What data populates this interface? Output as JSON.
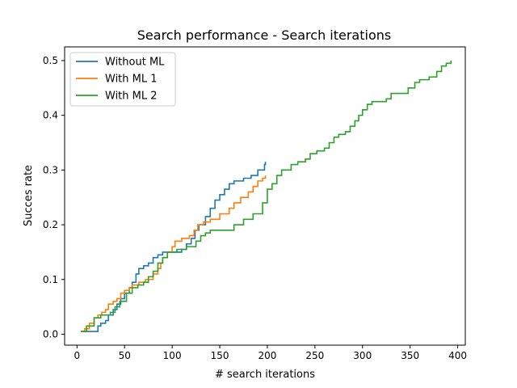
{
  "chart_data": {
    "type": "line",
    "title": "Search performance - Search iterations",
    "xlabel": "# search iterations",
    "ylabel": "Succes rate",
    "xlim": [
      -13,
      408
    ],
    "ylim": [
      -0.02,
      0.525
    ],
    "xticks": [
      0,
      50,
      100,
      150,
      200,
      250,
      300,
      350,
      400
    ],
    "yticks": [
      0.0,
      0.1,
      0.2,
      0.3,
      0.4,
      0.5
    ],
    "xtick_labels": [
      "0",
      "50",
      "100",
      "150",
      "200",
      "250",
      "300",
      "350",
      "400"
    ],
    "ytick_labels": [
      "0.0",
      "0.1",
      "0.2",
      "0.3",
      "0.4",
      "0.5"
    ],
    "grid": false,
    "legend_position": "top-left",
    "series": [
      {
        "name": "Without ML",
        "color": "#1f77b4",
        "points": [
          [
            4,
            0.005
          ],
          [
            10,
            0.005
          ],
          [
            12,
            0.005
          ],
          [
            22,
            0.015
          ],
          [
            25,
            0.02
          ],
          [
            30,
            0.025
          ],
          [
            33,
            0.035
          ],
          [
            38,
            0.045
          ],
          [
            42,
            0.055
          ],
          [
            46,
            0.065
          ],
          [
            50,
            0.075
          ],
          [
            55,
            0.085
          ],
          [
            58,
            0.095
          ],
          [
            62,
            0.11
          ],
          [
            65,
            0.12
          ],
          [
            70,
            0.125
          ],
          [
            75,
            0.13
          ],
          [
            80,
            0.14
          ],
          [
            85,
            0.145
          ],
          [
            90,
            0.15
          ],
          [
            95,
            0.15
          ],
          [
            105,
            0.15
          ],
          [
            110,
            0.155
          ],
          [
            115,
            0.165
          ],
          [
            120,
            0.175
          ],
          [
            124,
            0.19
          ],
          [
            128,
            0.2
          ],
          [
            135,
            0.215
          ],
          [
            140,
            0.23
          ],
          [
            145,
            0.245
          ],
          [
            150,
            0.255
          ],
          [
            155,
            0.265
          ],
          [
            160,
            0.275
          ],
          [
            165,
            0.28
          ],
          [
            175,
            0.285
          ],
          [
            183,
            0.29
          ],
          [
            190,
            0.3
          ],
          [
            196,
            0.3
          ],
          [
            197,
            0.31
          ],
          [
            198,
            0.315
          ]
        ]
      },
      {
        "name": "With ML 1",
        "color": "#ff7f0e",
        "points": [
          [
            4,
            0.005
          ],
          [
            8,
            0.01
          ],
          [
            13,
            0.02
          ],
          [
            18,
            0.03
          ],
          [
            22,
            0.035
          ],
          [
            26,
            0.04
          ],
          [
            30,
            0.045
          ],
          [
            33,
            0.055
          ],
          [
            38,
            0.06
          ],
          [
            42,
            0.065
          ],
          [
            46,
            0.075
          ],
          [
            50,
            0.08
          ],
          [
            55,
            0.085
          ],
          [
            58,
            0.09
          ],
          [
            65,
            0.095
          ],
          [
            72,
            0.1
          ],
          [
            80,
            0.11
          ],
          [
            85,
            0.12
          ],
          [
            88,
            0.13
          ],
          [
            90,
            0.14
          ],
          [
            95,
            0.15
          ],
          [
            100,
            0.16
          ],
          [
            103,
            0.17
          ],
          [
            110,
            0.175
          ],
          [
            118,
            0.18
          ],
          [
            123,
            0.19
          ],
          [
            127,
            0.2
          ],
          [
            133,
            0.205
          ],
          [
            140,
            0.21
          ],
          [
            150,
            0.22
          ],
          [
            160,
            0.23
          ],
          [
            165,
            0.24
          ],
          [
            172,
            0.25
          ],
          [
            180,
            0.26
          ],
          [
            185,
            0.27
          ],
          [
            190,
            0.28
          ],
          [
            195,
            0.285
          ],
          [
            198,
            0.29
          ]
        ]
      },
      {
        "name": "With ML 2",
        "color": "#2ca02c",
        "points": [
          [
            4,
            0.005
          ],
          [
            10,
            0.015
          ],
          [
            18,
            0.03
          ],
          [
            25,
            0.035
          ],
          [
            35,
            0.04
          ],
          [
            40,
            0.05
          ],
          [
            45,
            0.06
          ],
          [
            52,
            0.075
          ],
          [
            58,
            0.085
          ],
          [
            64,
            0.09
          ],
          [
            70,
            0.095
          ],
          [
            75,
            0.105
          ],
          [
            80,
            0.115
          ],
          [
            85,
            0.13
          ],
          [
            90,
            0.14
          ],
          [
            95,
            0.15
          ],
          [
            105,
            0.155
          ],
          [
            115,
            0.16
          ],
          [
            125,
            0.17
          ],
          [
            130,
            0.18
          ],
          [
            135,
            0.185
          ],
          [
            140,
            0.19
          ],
          [
            155,
            0.19
          ],
          [
            165,
            0.2
          ],
          [
            175,
            0.21
          ],
          [
            185,
            0.22
          ],
          [
            195,
            0.24
          ],
          [
            200,
            0.265
          ],
          [
            205,
            0.275
          ],
          [
            210,
            0.29
          ],
          [
            215,
            0.3
          ],
          [
            225,
            0.31
          ],
          [
            232,
            0.315
          ],
          [
            240,
            0.32
          ],
          [
            245,
            0.33
          ],
          [
            252,
            0.335
          ],
          [
            260,
            0.34
          ],
          [
            265,
            0.35
          ],
          [
            270,
            0.36
          ],
          [
            275,
            0.365
          ],
          [
            282,
            0.37
          ],
          [
            287,
            0.38
          ],
          [
            292,
            0.39
          ],
          [
            296,
            0.4
          ],
          [
            300,
            0.41
          ],
          [
            305,
            0.42
          ],
          [
            310,
            0.425
          ],
          [
            318,
            0.425
          ],
          [
            325,
            0.43
          ],
          [
            330,
            0.44
          ],
          [
            342,
            0.44
          ],
          [
            348,
            0.45
          ],
          [
            355,
            0.46
          ],
          [
            360,
            0.465
          ],
          [
            370,
            0.47
          ],
          [
            378,
            0.48
          ],
          [
            383,
            0.49
          ],
          [
            388,
            0.495
          ],
          [
            393,
            0.5
          ]
        ]
      }
    ]
  }
}
